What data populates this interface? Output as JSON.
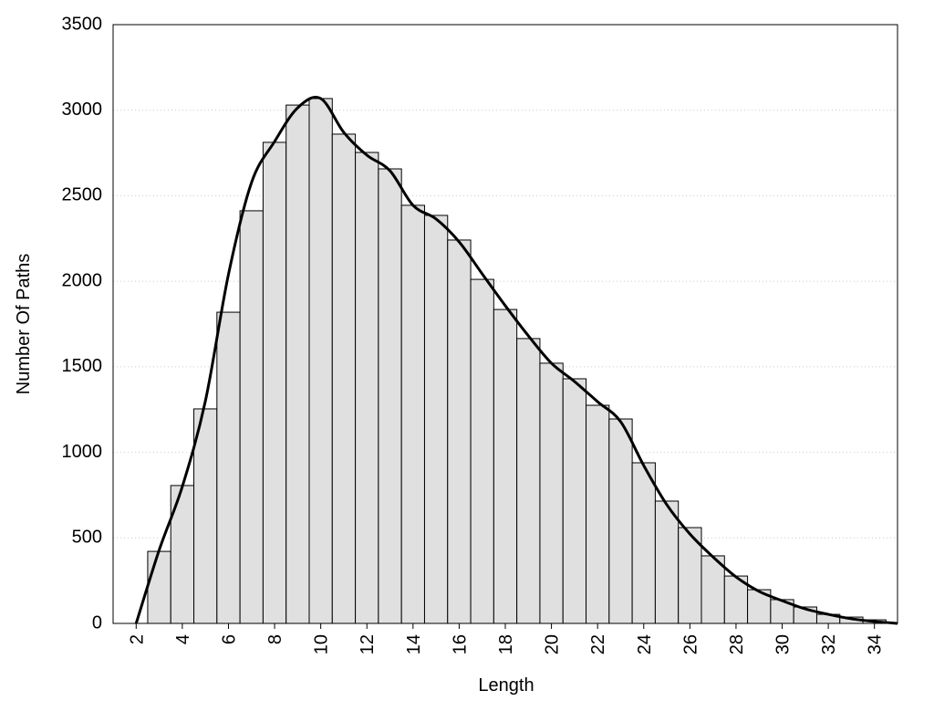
{
  "chart_data": {
    "type": "histogram",
    "x_label": "Length",
    "y_label": "Number Of Paths",
    "bins": [
      2.5,
      3.5,
      4.5,
      5.5,
      6.5,
      7.5,
      8.5,
      9.5,
      10.5,
      11.5,
      12.5,
      13.5,
      14.5,
      15.5,
      16.5,
      17.5,
      18.5,
      19.5,
      20.5,
      21.5,
      22.5,
      23.5,
      24.5,
      25.5,
      26.5,
      27.5,
      28.5,
      29.5,
      30.5,
      31.5,
      32.5,
      33.5,
      34.5
    ],
    "values": [
      421,
      806,
      1254,
      1819,
      2412,
      2812,
      3030,
      3068,
      2860,
      2753,
      2657,
      2444,
      2385,
      2241,
      2011,
      1835,
      1665,
      1521,
      1430,
      1275,
      1195,
      939,
      715,
      560,
      395,
      277,
      197,
      139,
      96,
      53,
      37,
      21
    ],
    "color": "#e0e0e0",
    "line": {
      "x": [
        2,
        3,
        4,
        5,
        6,
        7,
        8,
        9,
        10,
        11,
        12,
        13,
        14,
        15,
        16,
        17,
        18,
        19,
        20,
        21,
        22,
        23,
        24,
        25,
        26,
        27,
        28,
        29,
        30,
        31,
        32,
        33,
        34,
        35
      ],
      "values": [
        0,
        430,
        800,
        1300,
        2040,
        2577,
        2817,
        3014,
        3068,
        2870,
        2737,
        2646,
        2444,
        2364,
        2230,
        2043,
        1857,
        1681,
        1521,
        1414,
        1296,
        1179,
        923,
        694,
        523,
        389,
        272,
        187,
        133,
        85,
        53,
        27,
        11,
        0
      ],
      "color": "#000000"
    },
    "xlim": [
      1,
      35
    ],
    "ylim": [
      0,
      3500
    ],
    "xticks": [
      2,
      4,
      6,
      8,
      10,
      12,
      14,
      16,
      18,
      20,
      22,
      24,
      26,
      28,
      30,
      32,
      34
    ],
    "yticks": [
      0,
      500,
      1000,
      1500,
      2000,
      2500,
      3000,
      3500
    ],
    "grid": true
  }
}
